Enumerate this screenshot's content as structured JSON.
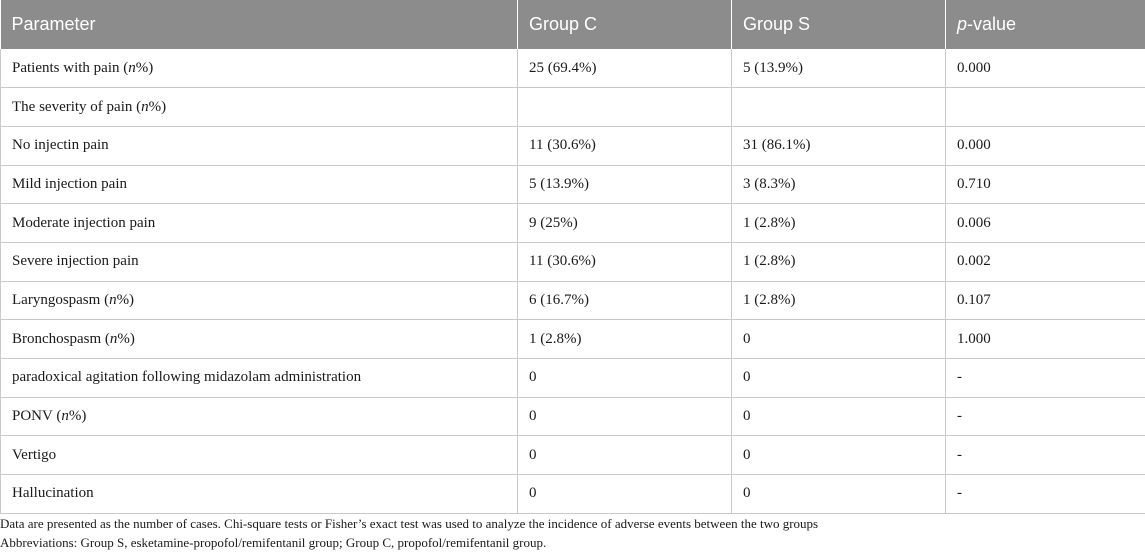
{
  "table": {
    "headers": [
      {
        "pre": "Parameter",
        "it": "",
        "post": ""
      },
      {
        "pre": "Group C",
        "it": "",
        "post": ""
      },
      {
        "pre": "Group S",
        "it": "",
        "post": ""
      },
      {
        "pre": "",
        "it": "p",
        "post": "-value"
      }
    ],
    "rows": [
      {
        "label": {
          "pre": "Patients with pain (",
          "it": "n",
          "post": "%)"
        },
        "c": "25 (69.4%)",
        "s": "5 (13.9%)",
        "p": "0.000"
      },
      {
        "label": {
          "pre": "The severity of pain (",
          "it": "n",
          "post": "%)"
        },
        "c": "",
        "s": "",
        "p": ""
      },
      {
        "label": {
          "pre": "No injectin pain",
          "it": "",
          "post": ""
        },
        "c": "11 (30.6%)",
        "s": "31 (86.1%)",
        "p": "0.000"
      },
      {
        "label": {
          "pre": "Mild injection pain",
          "it": "",
          "post": ""
        },
        "c": "5 (13.9%)",
        "s": "3 (8.3%)",
        "p": "0.710"
      },
      {
        "label": {
          "pre": "Moderate injection pain",
          "it": "",
          "post": ""
        },
        "c": "9 (25%)",
        "s": "1 (2.8%)",
        "p": "0.006"
      },
      {
        "label": {
          "pre": "Severe injection pain",
          "it": "",
          "post": ""
        },
        "c": "11 (30.6%)",
        "s": "1 (2.8%)",
        "p": "0.002"
      },
      {
        "label": {
          "pre": "Laryngospasm (",
          "it": "n",
          "post": "%)"
        },
        "c": "6 (16.7%)",
        "s": "1 (2.8%)",
        "p": "0.107"
      },
      {
        "label": {
          "pre": "Bronchospasm (",
          "it": "n",
          "post": "%)"
        },
        "c": "1 (2.8%)",
        "s": "0",
        "p": "1.000"
      },
      {
        "label": {
          "pre": "paradoxical agitation following midazolam administration",
          "it": "",
          "post": ""
        },
        "c": "0",
        "s": "0",
        "p": "-"
      },
      {
        "label": {
          "pre": "PONV (",
          "it": "n",
          "post": "%)"
        },
        "c": "0",
        "s": "0",
        "p": "-"
      },
      {
        "label": {
          "pre": "Vertigo",
          "it": "",
          "post": ""
        },
        "c": "0",
        "s": "0",
        "p": "-"
      },
      {
        "label": {
          "pre": "Hallucination",
          "it": "",
          "post": ""
        },
        "c": "0",
        "s": "0",
        "p": "-"
      }
    ]
  },
  "notes": {
    "line1": "Data are presented as the number of cases. Chi-square tests or Fisher’s exact test was used to analyze the incidence of adverse events between the two groups",
    "line2": "Abbreviations: Group S, esketamine-propofol/remifentanil group; Group C, propofol/remifentanil group."
  },
  "colors": {
    "header_bg": "#8c8c8c",
    "header_text": "#ffffff",
    "grid_line": "#c9c9c9",
    "body_text": "#1a1a1a"
  }
}
